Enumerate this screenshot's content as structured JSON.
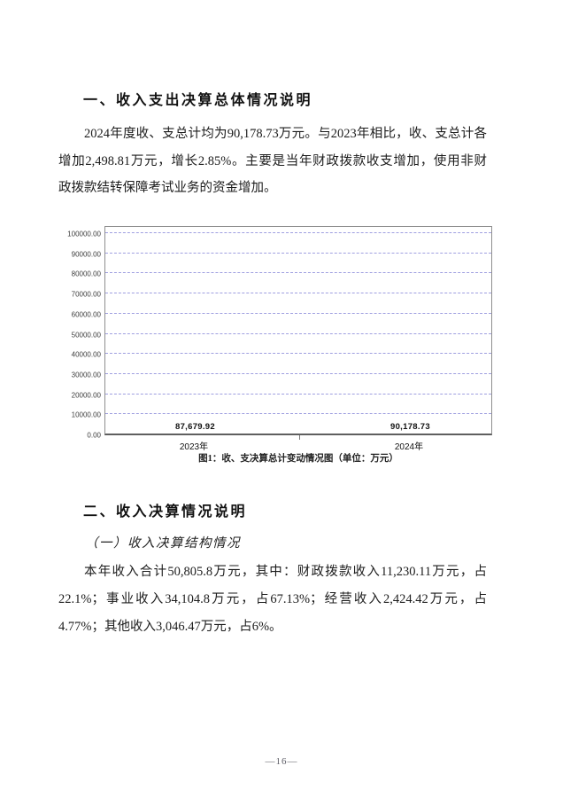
{
  "document": {
    "section1": {
      "heading": "一、收入支出决算总体情况说明",
      "paragraph_lines": [
        "2024年度收、支总计均为90,178.73万元。与2023年相比，收、支总计各",
        "增加2,498.81万元，增长2.85%。主要是当年财政拨款收支增加，使用非财",
        "政拨款结转保障考试业务的资金增加。"
      ]
    },
    "section2": {
      "heading": "二、收入决算情况说明",
      "subheading": "（一）收入决算结构情况",
      "paragraph_lines": [
        "本年收入合计50,805.8万元，其中：财政拨款收入11,230.11万元，占",
        "22.1%；事业收入34,104.8万元，占67.13%；经营收入2,424.42万元，占",
        "4.77%；其他收入3,046.47万元，占6%。"
      ]
    },
    "page_number": "—16—"
  },
  "chart_data": {
    "type": "bar",
    "title": "图1：收、支决算总计变动情况图（单位：万元）",
    "categories": [
      "2023年",
      "2024年"
    ],
    "values": [
      87679.92,
      90178.73
    ],
    "value_labels": [
      "87,679.92",
      "90,178.73"
    ],
    "yticks": [
      "100000.00",
      "90000.00",
      "80000.00",
      "70000.00",
      "60000.00",
      "50000.00",
      "40000.00",
      "30000.00",
      "20000.00",
      "10000.00",
      "0.00"
    ],
    "ylim": [
      0,
      100000
    ],
    "xlabel": "",
    "ylabel": "",
    "grid": "horizontal-dashed",
    "legend": "none",
    "bar_colors": [
      "#5b75c6",
      "#fac85e"
    ],
    "shadow_color": "#8a8a8a",
    "gridline_color": "#9f9fe0"
  }
}
